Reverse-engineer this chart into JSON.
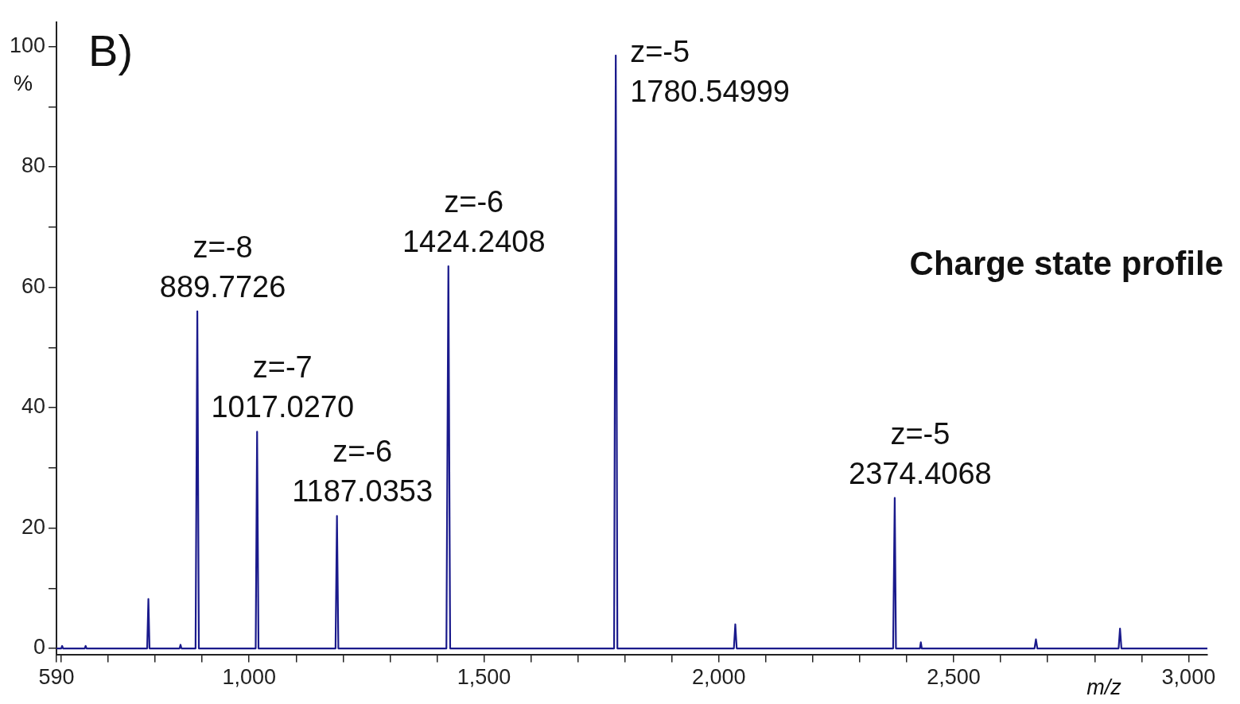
{
  "chart_data": {
    "type": "line",
    "title": "B)",
    "xlabel": "m/z",
    "ylabel": "%",
    "series": [
      {
        "color": "#1a1a8c",
        "x": [
          590,
          600,
          602,
          604,
          650,
          652,
          654,
          783,
          785.6,
          788,
          852,
          854,
          856,
          886,
          889.7726,
          893,
          1014,
          1017.027,
          1020,
          1184,
          1187.0353,
          1190,
          1420,
          1424.2408,
          1428,
          1777,
          1780.54999,
          1784,
          2032,
          2035,
          2038,
          2371,
          2374.4068,
          2377,
          2428,
          2430,
          2432,
          2672,
          2675,
          2678,
          2851,
          2854,
          2857,
          3040
        ],
        "values": [
          0,
          0,
          0.4,
          0,
          0,
          0.4,
          0,
          0,
          8.2,
          0,
          0,
          0.6,
          0,
          0,
          56,
          0,
          0,
          36,
          0,
          0,
          22,
          0,
          0,
          63.5,
          0,
          0,
          98.5,
          0,
          0,
          4,
          0,
          0,
          25,
          0,
          0,
          1,
          0,
          0,
          1.5,
          0,
          0,
          3.3,
          0,
          0
        ]
      }
    ],
    "xlim": [
      590,
      3040
    ],
    "xticks": [
      590,
      {
        "value": 600,
        "label": null
      },
      {
        "value": 700,
        "label": null
      },
      {
        "value": 800,
        "label": null
      },
      {
        "value": 900,
        "label": null
      },
      {
        "value": 1000,
        "label": "1,000"
      },
      {
        "value": 1100,
        "label": null
      },
      {
        "value": 1200,
        "label": null
      },
      {
        "value": 1300,
        "label": null
      },
      {
        "value": 1400,
        "label": null
      },
      {
        "value": 1500,
        "label": "1,500"
      },
      {
        "value": 1600,
        "label": null
      },
      {
        "value": 1700,
        "label": null
      },
      {
        "value": 1800,
        "label": null
      },
      {
        "value": 1900,
        "label": null
      },
      {
        "value": 2000,
        "label": "2,000"
      },
      {
        "value": 2100,
        "label": null
      },
      {
        "value": 2200,
        "label": null
      },
      {
        "value": 2300,
        "label": null
      },
      {
        "value": 2400,
        "label": null
      },
      {
        "value": 2500,
        "label": "2,500"
      },
      {
        "value": 2600,
        "label": null
      },
      {
        "value": 2700,
        "label": null
      },
      {
        "value": 2800,
        "label": null
      },
      {
        "value": 2900,
        "label": null
      },
      {
        "value": 3000,
        "label": "3,000"
      }
    ],
    "ylim": [
      -1,
      104
    ],
    "yticks": [
      0,
      {
        "value": 10,
        "label": null
      },
      20,
      {
        "value": 30,
        "label": null
      },
      40,
      {
        "value": 50,
        "label": null
      },
      60,
      {
        "value": 70,
        "label": null
      },
      80,
      {
        "value": 90,
        "label": null
      },
      100
    ],
    "grid": false,
    "legend": false,
    "marker": "none",
    "line_style": "solid",
    "annotations": [
      {
        "text": "z=-8\n889.7726",
        "x": 889.7726,
        "y": 56
      },
      {
        "text": "z=-7\n1017.0270",
        "x": 1017.027,
        "y": 36
      },
      {
        "text": "z=-6\n1187.0353",
        "x": 1187.0353,
        "y": 22
      },
      {
        "text": "z=-6\n1424.2408",
        "x": 1424.2408,
        "y": 63.5
      },
      {
        "text": "z=-5\n1780.54999",
        "x": 1780.54999,
        "y": 98.5
      },
      {
        "text": "z=-5\n2374.4068",
        "x": 2374.4068,
        "y": 25
      },
      "Charge state profile"
    ]
  }
}
